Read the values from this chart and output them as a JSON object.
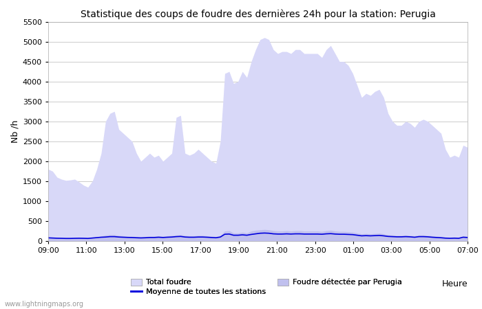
{
  "title": "Statistique des coups de foudre des dernières 24h pour la station: Perugia",
  "ylabel": "Nb /h",
  "xlabel": "Heure",
  "watermark": "www.lightningmaps.org",
  "ylim": [
    0,
    5500
  ],
  "yticks": [
    0,
    500,
    1000,
    1500,
    2000,
    2500,
    3000,
    3500,
    4000,
    4500,
    5000,
    5500
  ],
  "xtick_labels": [
    "09:00",
    "11:00",
    "13:00",
    "15:00",
    "17:00",
    "19:00",
    "21:00",
    "23:00",
    "01:00",
    "03:00",
    "05:00",
    "07:00"
  ],
  "bg_color": "#ffffff",
  "grid_color": "#cccccc",
  "total_foudre_color": "#d8d8f8",
  "perugia_color": "#c0c0ee",
  "moyenne_color": "#0000dd",
  "legend_total": "Total foudre",
  "legend_moyenne": "Moyenne de toutes les stations",
  "legend_perugia": "Foudre détectée par Perugia",
  "n_points": 96,
  "total_foudre": [
    1800,
    1750,
    1600,
    1550,
    1520,
    1530,
    1550,
    1480,
    1400,
    1350,
    1500,
    1800,
    2200,
    3000,
    3200,
    3250,
    2800,
    2700,
    2600,
    2500,
    2200,
    2000,
    2100,
    2200,
    2100,
    2150,
    2000,
    2100,
    2200,
    3100,
    3150,
    2200,
    2150,
    2200,
    2300,
    2200,
    2100,
    2000,
    1950,
    2500,
    4200,
    4250,
    3950,
    4000,
    4250,
    4100,
    4500,
    4800,
    5050,
    5100,
    5050,
    4800,
    4700,
    4750,
    4750,
    4700,
    4800,
    4800,
    4700,
    4700,
    4700,
    4700,
    4600,
    4800,
    4900,
    4700,
    4500,
    4500,
    4400,
    4200,
    3900,
    3600,
    3700,
    3650,
    3750,
    3800,
    3600,
    3200,
    3000,
    2900,
    2900,
    3000,
    2950,
    2850,
    3000,
    3050,
    3000,
    2900,
    2800,
    2700,
    2300,
    2100,
    2150,
    2100,
    2400,
    2350
  ],
  "perugia": [
    100,
    90,
    80,
    75,
    70,
    70,
    75,
    80,
    80,
    75,
    90,
    100,
    120,
    150,
    160,
    160,
    140,
    130,
    120,
    115,
    110,
    105,
    110,
    120,
    120,
    130,
    120,
    130,
    140,
    150,
    160,
    140,
    130,
    130,
    140,
    140,
    130,
    120,
    110,
    140,
    250,
    260,
    200,
    200,
    220,
    200,
    250,
    270,
    280,
    290,
    280,
    260,
    250,
    250,
    260,
    250,
    260,
    260,
    250,
    250,
    250,
    250,
    240,
    260,
    270,
    250,
    240,
    240,
    230,
    220,
    200,
    180,
    190,
    180,
    190,
    200,
    180,
    160,
    150,
    140,
    140,
    150,
    140,
    130,
    150,
    150,
    140,
    130,
    120,
    110,
    100,
    90,
    100,
    90,
    130,
    120
  ],
  "moyenne": [
    80,
    75,
    70,
    68,
    65,
    65,
    68,
    70,
    68,
    65,
    75,
    85,
    95,
    100,
    110,
    110,
    100,
    95,
    90,
    88,
    82,
    78,
    82,
    88,
    88,
    95,
    88,
    95,
    100,
    110,
    115,
    100,
    95,
    95,
    100,
    100,
    95,
    88,
    82,
    100,
    170,
    175,
    145,
    145,
    155,
    145,
    165,
    180,
    195,
    200,
    195,
    180,
    175,
    175,
    180,
    175,
    180,
    180,
    175,
    175,
    175,
    175,
    170,
    180,
    185,
    175,
    170,
    170,
    165,
    160,
    145,
    130,
    135,
    130,
    135,
    140,
    130,
    115,
    110,
    105,
    105,
    110,
    105,
    95,
    110,
    110,
    105,
    95,
    88,
    82,
    72,
    68,
    72,
    68,
    95,
    88
  ]
}
